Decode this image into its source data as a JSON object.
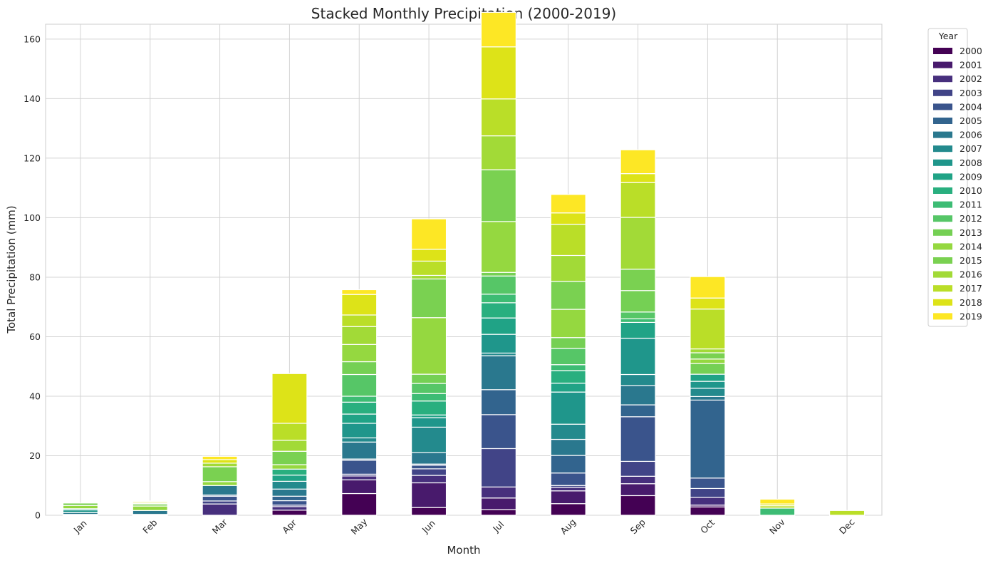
{
  "chart_data": {
    "type": "bar",
    "stacked": true,
    "title": "Stacked Monthly Precipitation (2000-2019)",
    "xlabel": "Month",
    "ylabel": "Total Precipitation (mm)",
    "ylim": [
      0,
      165
    ],
    "yticks": [
      0,
      20,
      40,
      60,
      80,
      100,
      120,
      140,
      160
    ],
    "grid": true,
    "legend": {
      "title": "Year",
      "placement": "outside-top-right"
    },
    "categories": [
      "Jan",
      "Feb",
      "Mar",
      "Apr",
      "May",
      "Jun",
      "Jul",
      "Aug",
      "Sep",
      "Oct",
      "Nov",
      "Dec"
    ],
    "series": [
      {
        "name": "2000",
        "color": "#440154",
        "values": [
          0,
          0,
          0,
          1.7,
          7.3,
          2.6,
          1.9,
          3.9,
          6.6,
          2.8,
          0,
          0
        ]
      },
      {
        "name": "2001",
        "color": "#481a6c",
        "values": [
          0,
          0,
          0,
          0,
          4.6,
          8.3,
          3.9,
          4.3,
          4.0,
          0.6,
          0,
          0
        ]
      },
      {
        "name": "2002",
        "color": "#472f7d",
        "values": [
          0,
          0,
          3.8,
          1.2,
          1.3,
          2.5,
          3.7,
          1.2,
          2.5,
          2.6,
          0,
          0
        ]
      },
      {
        "name": "2003",
        "color": "#414487",
        "values": [
          0,
          0,
          1.0,
          0.5,
          0.6,
          2.2,
          12.9,
          0.6,
          5.0,
          3.0,
          0,
          0
        ]
      },
      {
        "name": "2004",
        "color": "#3a548c",
        "values": [
          0,
          0,
          1.6,
          1.5,
          4.7,
          1.2,
          11.4,
          4.2,
          15.0,
          3.5,
          0,
          0
        ]
      },
      {
        "name": "2005",
        "color": "#32648e",
        "values": [
          0.3,
          0.3,
          0.4,
          1.5,
          0.4,
          0.4,
          8.4,
          5.9,
          4.0,
          26.2,
          0,
          0
        ]
      },
      {
        "name": "2006",
        "color": "#2a788e",
        "values": [
          0.6,
          1.3,
          3.2,
          2.4,
          5.7,
          3.9,
          11.4,
          5.4,
          6.5,
          1.2,
          0,
          0
        ]
      },
      {
        "name": "2007",
        "color": "#238a8d",
        "values": [
          0,
          0,
          0,
          2.6,
          1.4,
          8.5,
          0.9,
          5.1,
          3.7,
          2.8,
          0,
          0
        ]
      },
      {
        "name": "2008",
        "color": "#1f968b",
        "values": [
          0.9,
          0,
          0,
          0,
          4.9,
          3.2,
          6.3,
          10.8,
          12.2,
          2.3,
          0,
          0
        ]
      },
      {
        "name": "2009",
        "color": "#20a386",
        "values": [
          0.4,
          0,
          0,
          2.1,
          3.1,
          0.9,
          5.5,
          3.0,
          5.3,
          2.4,
          0,
          0
        ]
      },
      {
        "name": "2010",
        "color": "#29af7f",
        "values": [
          0,
          0,
          0,
          2.0,
          4.0,
          4.7,
          5.1,
          4.2,
          0,
          0,
          0,
          0
        ]
      },
      {
        "name": "2011",
        "color": "#3dbc74",
        "values": [
          0,
          0,
          0,
          0,
          2.0,
          2.5,
          2.9,
          2.0,
          1.2,
          0,
          2.4,
          0
        ]
      },
      {
        "name": "2012",
        "color": "#56c667",
        "values": [
          0,
          0,
          0,
          0,
          7.3,
          3.4,
          6.1,
          5.5,
          2.3,
          0,
          0,
          0
        ]
      },
      {
        "name": "2013",
        "color": "#75d054",
        "values": [
          0,
          0,
          0,
          0,
          4.3,
          3.1,
          1.2,
          3.6,
          7.2,
          3.6,
          0,
          0
        ]
      },
      {
        "name": "2014",
        "color": "#95d840",
        "values": [
          1.1,
          1.5,
          1.3,
          1.5,
          5.8,
          19.0,
          17.1,
          9.5,
          0,
          1.5,
          0,
          0
        ]
      },
      {
        "name": "2015",
        "color": "#7ad151",
        "values": [
          0.8,
          0.7,
          5.0,
          4.5,
          0,
          13.0,
          17.4,
          9.4,
          7.2,
          2.1,
          0,
          0
        ]
      },
      {
        "name": "2016",
        "color": "#a2da37",
        "values": [
          0,
          0.3,
          1.2,
          3.7,
          6.0,
          1.2,
          11.4,
          8.7,
          17.4,
          1.3,
          0,
          0
        ]
      },
      {
        "name": "2017",
        "color": "#bade28",
        "values": [
          0,
          0,
          0,
          5.7,
          3.9,
          4.8,
          12.4,
          10.5,
          11.7,
          13.4,
          0.8,
          1.6
        ]
      },
      {
        "name": "2018",
        "color": "#dde318",
        "values": [
          0,
          0.4,
          1.2,
          16.7,
          6.9,
          4.0,
          17.5,
          3.8,
          3.0,
          3.7,
          0.6,
          0
        ]
      },
      {
        "name": "2019",
        "color": "#fde725",
        "values": [
          0,
          0.3,
          1.1,
          0,
          1.6,
          10.2,
          11.6,
          6.2,
          8.0,
          7.2,
          1.6,
          0
        ]
      }
    ]
  }
}
